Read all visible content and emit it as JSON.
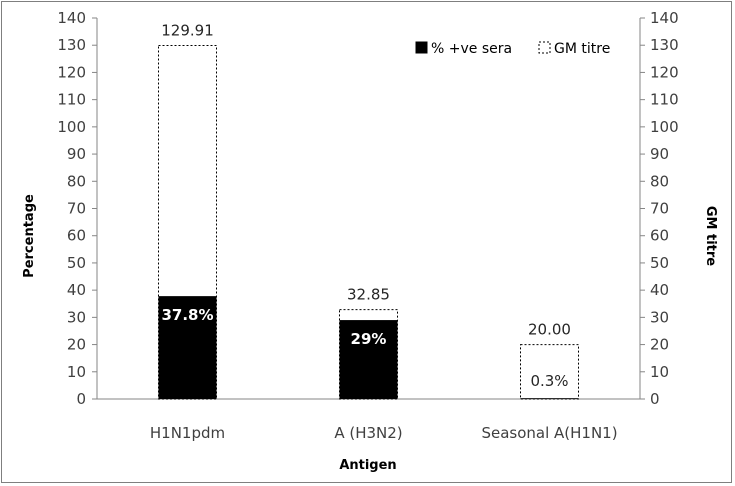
{
  "chart_data": {
    "type": "bar",
    "categories": [
      "H1N1pdm",
      "A (H3N2)",
      "Seasonal A(H1N1)"
    ],
    "xlabel": "Antigen",
    "ylabel": "Percentage",
    "y2label": "GM titre",
    "ylim": [
      0,
      140
    ],
    "y2lim": [
      0,
      140
    ],
    "yticks": [
      0,
      10,
      20,
      30,
      40,
      50,
      60,
      70,
      80,
      90,
      100,
      110,
      120,
      130,
      140
    ],
    "grid": false,
    "legend_position": "top-right",
    "series": [
      {
        "name": "% +ve sera",
        "axis": "left",
        "values": [
          37.8,
          29,
          0.3
        ],
        "labels": [
          "37.8%",
          "29%",
          "0.3%"
        ],
        "color": "#000000"
      },
      {
        "name": "GM titre",
        "axis": "right",
        "values": [
          129.91,
          32.85,
          20.0
        ],
        "labels": [
          "129.91",
          "32.85",
          "20.00"
        ],
        "color": "#ffffff"
      }
    ]
  }
}
